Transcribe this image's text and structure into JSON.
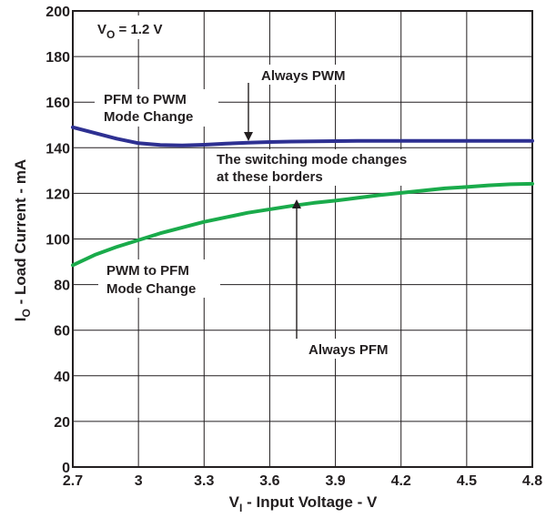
{
  "chart_data": {
    "type": "line",
    "xlabel": {
      "main": "V",
      "sub": "I",
      "rest": " - Input Voltage - V"
    },
    "ylabel": {
      "main": "I",
      "sub": "O",
      "rest": " - Load Current - mA"
    },
    "xlim": [
      2.7,
      4.8
    ],
    "ylim": [
      0,
      200
    ],
    "x_ticks": [
      "2.7",
      "3",
      "3.3",
      "3.6",
      "3.9",
      "4.2",
      "4.5",
      "4.8"
    ],
    "y_ticks": [
      "0",
      "20",
      "40",
      "60",
      "80",
      "100",
      "120",
      "140",
      "160",
      "180",
      "200"
    ],
    "grid": true,
    "series": [
      {
        "color": "#2e3092",
        "x": [
          2.7,
          2.8,
          2.9,
          3.0,
          3.1,
          3.2,
          3.3,
          3.4,
          3.5,
          3.6,
          3.7,
          3.8,
          3.9,
          4.0,
          4.2,
          4.5,
          4.8
        ],
        "y": [
          149,
          146.5,
          144,
          142,
          141.2,
          141,
          141.3,
          141.8,
          142.2,
          142.5,
          142.7,
          142.8,
          142.9,
          143,
          143,
          143,
          143
        ]
      },
      {
        "color": "#1aab4b",
        "x": [
          2.7,
          2.8,
          2.9,
          3.0,
          3.1,
          3.2,
          3.3,
          3.4,
          3.5,
          3.6,
          3.7,
          3.8,
          3.9,
          4.0,
          4.1,
          4.2,
          4.3,
          4.4,
          4.5,
          4.6,
          4.7,
          4.8
        ],
        "y": [
          88.5,
          93,
          96.5,
          99.5,
          102.5,
          105,
          107.5,
          109.5,
          111.5,
          113,
          114.5,
          115.8,
          116.8,
          118,
          119.2,
          120.2,
          121.2,
          122.2,
          122.8,
          123.5,
          124,
          124.2
        ]
      }
    ],
    "annotations": {
      "vo": {
        "main": "V",
        "sub": "O",
        "rest": " = 1.2 V"
      },
      "always_pwm": "Always PWM",
      "pfm_to_pwm": [
        "PFM to PWM",
        "Mode Change"
      ],
      "switching": [
        "The switching mode changes",
        "at these borders"
      ],
      "pwm_to_pfm": [
        "PWM to PFM",
        "Mode Change"
      ],
      "always_pfm": "Always PFM"
    }
  }
}
